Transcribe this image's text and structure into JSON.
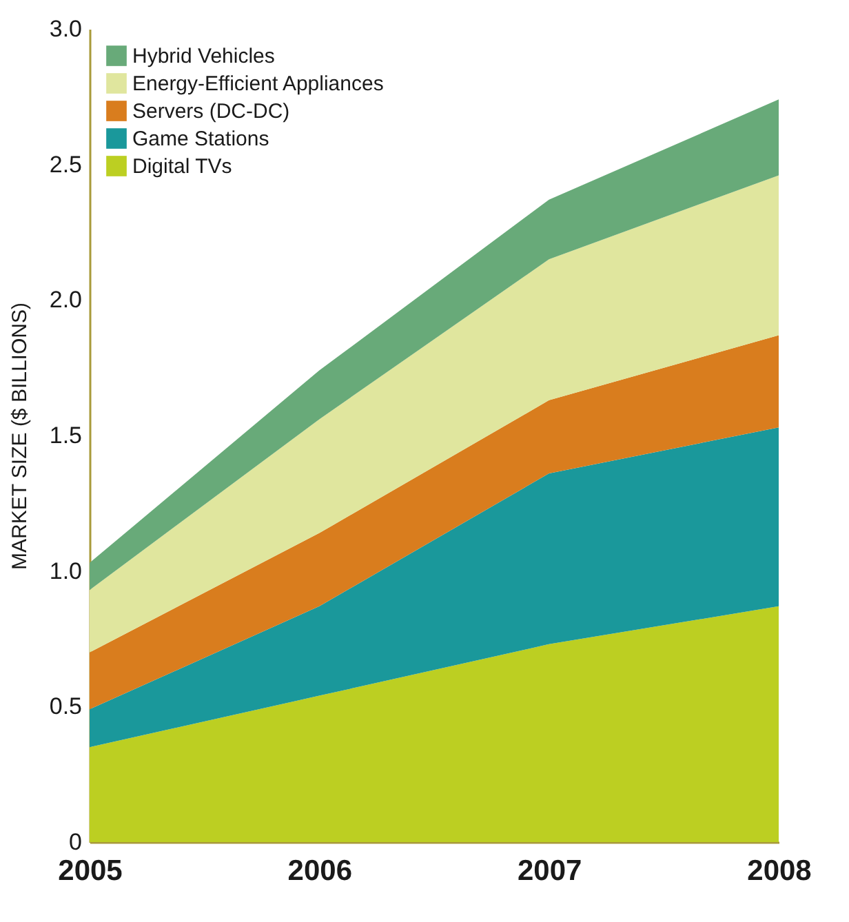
{
  "chart_data": {
    "type": "area",
    "stacked": true,
    "ylabel": "MARKET SIZE ($ BILLIONS)",
    "categories": [
      "2005",
      "2006",
      "2007",
      "2008"
    ],
    "ylim": [
      0,
      3
    ],
    "yticks": [
      0,
      0.5,
      {
        "value": 1,
        "label": "1.0"
      },
      1.5,
      {
        "value": 2,
        "label": "2.0"
      },
      2.5,
      {
        "value": 3,
        "label": "3.0"
      }
    ],
    "grid": false,
    "legend": "top left",
    "series": [
      {
        "name": "Digital TVs",
        "color": "#bccf22",
        "values": [
          0.35,
          0.54,
          0.73,
          0.87
        ]
      },
      {
        "name": "Game Stations",
        "color": "#1a989b",
        "values": [
          0.14,
          0.33,
          0.63,
          0.66
        ]
      },
      {
        "name": "Servers (DC-DC)",
        "color": "#d97d1e",
        "values": [
          0.21,
          0.27,
          0.27,
          0.34
        ]
      },
      {
        "name": "Energy-Efficient Appliances",
        "color": "#e0e69e",
        "values": [
          0.23,
          0.42,
          0.52,
          0.59
        ]
      },
      {
        "name": "Hybrid Vehicles",
        "color": "#68aa79",
        "values": [
          0.1,
          0.18,
          0.22,
          0.28
        ]
      }
    ]
  }
}
